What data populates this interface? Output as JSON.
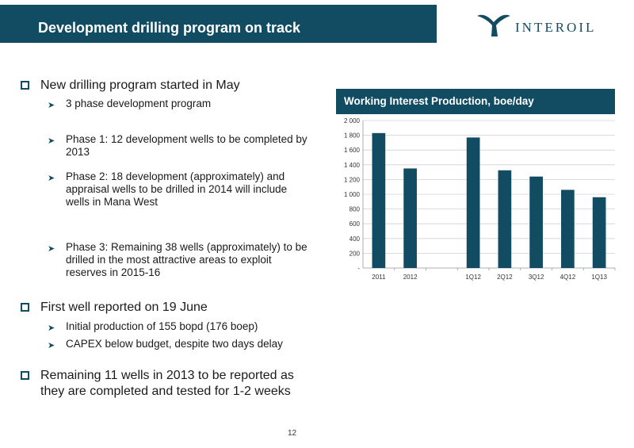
{
  "slide": {
    "title": "Development drilling program on track",
    "logo_text": "INTEROIL",
    "page_number": "12"
  },
  "bullets": [
    {
      "text": "New drilling program started in May",
      "sub": [
        "3 phase development program",
        "Phase 1: 12 development wells to be completed by 2013",
        "Phase 2: 18 development (approximately) and appraisal wells to be drilled in 2014 will include wells in Mana West",
        "Phase 3: Remaining 38 wells (approximately) to be drilled in the most attractive areas to exploit reserves in 2015-16"
      ]
    },
    {
      "text": "First well reported on 19 June",
      "sub": [
        "Initial production of 155 bopd (176 boep)",
        "CAPEX below budget, despite two days delay"
      ]
    },
    {
      "text": "Remaining 11 wells in 2013 to be reported as they are completed and tested for 1-2 weeks",
      "sub": []
    }
  ],
  "colors": {
    "brand": "#124c63",
    "bar": "#124c63",
    "grid": "#d0d0d0"
  },
  "chart_data": {
    "type": "bar",
    "title": "Working Interest Production, boe/day",
    "categories": [
      "2011",
      "2012",
      "",
      "1Q12",
      "2Q12",
      "3Q12",
      "4Q12",
      "1Q13"
    ],
    "values": [
      1830,
      1350,
      null,
      1770,
      1325,
      1240,
      1060,
      960
    ],
    "ylim": [
      0,
      2000
    ],
    "yticks": [
      0,
      200,
      400,
      600,
      800,
      1000,
      1200,
      1400,
      1600,
      1800,
      2000
    ],
    "ytick_labels": [
      "-",
      "200",
      "400",
      "600",
      "800",
      "1 000",
      "1 200",
      "1 400",
      "1 600",
      "1 800",
      "2 000"
    ],
    "grid": true,
    "legend": "none"
  }
}
